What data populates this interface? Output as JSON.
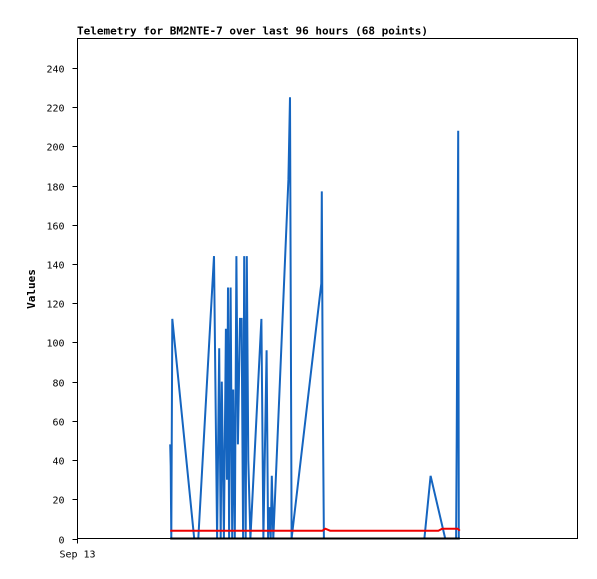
{
  "chart_data": {
    "type": "line",
    "title": "Telemetry for BM2NTE-7 over last 96 hours (68 points)",
    "xlabel": "",
    "ylabel": "Values",
    "x_tick_labels": [
      "Sep 13"
    ],
    "y_ticks": [
      0,
      20,
      40,
      60,
      80,
      100,
      120,
      140,
      160,
      180,
      200,
      220,
      240
    ],
    "ylim": [
      0,
      255
    ],
    "xlim": [
      0,
      96
    ],
    "grid": false,
    "legend": "none",
    "colors": {
      "blue": "#1565c0",
      "red": "#ee0000",
      "black": "#000000"
    },
    "series": [
      {
        "color": "#1565c0",
        "points": [
          [
            17.8,
            48
          ],
          [
            17.9,
            37
          ],
          [
            18.0,
            0
          ],
          [
            18.2,
            112
          ],
          [
            22.4,
            0
          ],
          [
            23.2,
            0
          ],
          [
            26.2,
            144
          ],
          [
            26.8,
            0
          ],
          [
            27.2,
            97
          ],
          [
            27.5,
            0
          ],
          [
            27.7,
            80
          ],
          [
            28.1,
            0
          ],
          [
            28.5,
            107
          ],
          [
            28.7,
            30
          ],
          [
            28.9,
            128
          ],
          [
            29.1,
            0
          ],
          [
            29.4,
            128
          ],
          [
            29.7,
            0
          ],
          [
            29.9,
            76
          ],
          [
            30.2,
            0
          ],
          [
            30.5,
            144
          ],
          [
            30.8,
            48
          ],
          [
            31.2,
            112
          ],
          [
            31.5,
            112
          ],
          [
            31.8,
            0
          ],
          [
            32.0,
            144
          ],
          [
            32.3,
            0
          ],
          [
            32.5,
            144
          ],
          [
            32.8,
            40
          ],
          [
            33.2,
            0
          ],
          [
            35.3,
            112
          ],
          [
            35.7,
            0
          ],
          [
            36.3,
            96
          ],
          [
            36.6,
            0
          ],
          [
            36.9,
            16
          ],
          [
            37.1,
            0
          ],
          [
            37.3,
            32
          ],
          [
            37.6,
            0
          ],
          [
            40.5,
            183
          ],
          [
            40.8,
            225
          ],
          [
            41.1,
            0
          ],
          [
            46.8,
            130
          ],
          [
            46.9,
            177
          ],
          [
            47.1,
            70
          ],
          [
            47.3,
            0
          ],
          [
            66.6,
            0
          ],
          [
            67.8,
            32
          ],
          [
            70.6,
            0
          ],
          [
            72.7,
            0
          ],
          [
            72.8,
            50
          ],
          [
            73.0,
            155
          ],
          [
            73.1,
            208
          ],
          [
            73.2,
            0
          ]
        ]
      },
      {
        "color": "#ee0000",
        "points": [
          [
            17.8,
            4
          ],
          [
            47.0,
            4
          ],
          [
            47.6,
            5
          ],
          [
            48.5,
            4
          ],
          [
            69.3,
            4
          ],
          [
            70.0,
            5
          ],
          [
            73.0,
            5
          ],
          [
            73.4,
            4
          ]
        ]
      },
      {
        "color": "#000000",
        "points": [
          [
            17.8,
            0
          ],
          [
            73.4,
            0
          ]
        ]
      }
    ]
  }
}
